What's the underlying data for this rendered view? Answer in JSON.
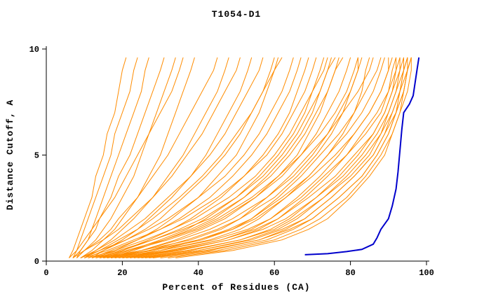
{
  "chart_data": {
    "type": "line",
    "title": "T1054-D1",
    "xlabel": "Percent of Residues (CA)",
    "ylabel": "Distance Cutoff, A",
    "xlim": [
      0,
      100
    ],
    "ylim": [
      0,
      10
    ],
    "x_ticks": [
      0,
      20,
      40,
      60,
      80,
      100
    ],
    "y_ticks": [
      0,
      5,
      10
    ],
    "grid": false,
    "legend": "none",
    "colors": {
      "model_curves": "#ff8c00",
      "best_curve": "#0000cc",
      "axis": "#000000",
      "text": "#000000",
      "background": "#ffffff"
    },
    "y_grid": [
      0.15,
      0.5,
      1,
      1.5,
      2,
      3,
      4,
      5,
      6,
      7,
      8,
      9,
      9.6
    ],
    "series": {
      "orange_model_curves": [
        [
          6,
          7,
          8,
          9,
          10,
          12,
          13,
          15,
          16,
          18,
          19,
          20,
          21
        ],
        [
          7,
          8,
          9,
          10,
          11,
          13,
          15,
          17,
          18,
          20,
          22,
          23,
          24
        ],
        [
          8,
          9,
          11,
          12,
          13,
          15,
          17,
          19,
          21,
          23,
          25,
          26,
          27
        ],
        [
          7,
          9,
          11,
          13,
          14,
          17,
          19,
          22,
          24,
          26,
          28,
          30,
          31
        ],
        [
          8,
          10,
          13,
          15,
          17,
          20,
          23,
          25,
          27,
          29,
          31,
          33,
          34
        ],
        [
          6,
          8,
          10,
          12,
          14,
          18,
          21,
          24,
          27,
          30,
          33,
          35,
          36
        ],
        [
          9,
          12,
          15,
          18,
          20,
          24,
          27,
          30,
          32,
          34,
          36,
          38,
          39
        ],
        [
          8,
          10,
          14,
          17,
          19,
          24,
          28,
          32,
          35,
          38,
          41,
          44,
          45
        ],
        [
          10,
          13,
          17,
          20,
          23,
          28,
          32,
          36,
          39,
          42,
          45,
          47,
          48
        ],
        [
          7,
          10,
          15,
          19,
          22,
          28,
          33,
          37,
          41,
          44,
          47,
          50,
          51
        ],
        [
          12,
          15,
          20,
          24,
          27,
          33,
          38,
          42,
          45,
          48,
          51,
          53,
          54
        ],
        [
          9,
          13,
          18,
          22,
          26,
          32,
          38,
          43,
          47,
          50,
          53,
          56,
          57
        ],
        [
          11,
          15,
          21,
          26,
          30,
          36,
          42,
          47,
          51,
          54,
          57,
          59,
          60
        ],
        [
          13,
          18,
          24,
          29,
          33,
          40,
          45,
          50,
          53,
          56,
          58,
          60,
          61
        ],
        [
          10,
          14,
          19,
          24,
          28,
          35,
          41,
          46,
          50,
          54,
          57,
          60,
          62
        ],
        [
          9,
          14,
          21,
          27,
          32,
          40,
          47,
          52,
          56,
          59,
          62,
          64,
          65
        ],
        [
          12,
          17,
          24,
          30,
          35,
          43,
          49,
          54,
          58,
          61,
          64,
          66,
          67
        ],
        [
          14,
          20,
          27,
          33,
          38,
          46,
          52,
          57,
          61,
          64,
          66,
          68,
          69
        ],
        [
          10,
          16,
          23,
          30,
          36,
          45,
          52,
          58,
          62,
          65,
          68,
          70,
          71
        ],
        [
          15,
          22,
          30,
          37,
          42,
          50,
          56,
          61,
          65,
          68,
          70,
          72,
          73
        ],
        [
          11,
          18,
          26,
          33,
          39,
          48,
          55,
          60,
          64,
          67,
          70,
          73,
          74
        ],
        [
          16,
          23,
          31,
          38,
          44,
          52,
          58,
          63,
          67,
          70,
          72,
          74,
          75
        ],
        [
          13,
          20,
          28,
          35,
          41,
          50,
          57,
          62,
          66,
          69,
          72,
          74,
          76
        ],
        [
          17,
          25,
          34,
          41,
          47,
          55,
          61,
          66,
          69,
          72,
          74,
          76,
          77
        ],
        [
          12,
          19,
          28,
          36,
          43,
          52,
          59,
          64,
          68,
          71,
          74,
          76,
          78
        ],
        [
          14,
          22,
          32,
          40,
          46,
          55,
          62,
          67,
          71,
          74,
          77,
          79,
          80
        ],
        [
          18,
          27,
          37,
          45,
          51,
          60,
          66,
          71,
          75,
          78,
          80,
          82,
          82
        ],
        [
          16,
          25,
          35,
          43,
          49,
          58,
          65,
          70,
          74,
          77,
          80,
          82,
          83
        ],
        [
          20,
          30,
          40,
          48,
          54,
          62,
          69,
          74,
          78,
          81,
          83,
          84,
          85
        ],
        [
          13,
          21,
          31,
          39,
          45,
          54,
          61,
          67,
          72,
          76,
          79,
          81,
          82
        ],
        [
          14,
          25,
          38,
          46,
          51,
          58,
          64,
          69,
          74,
          78,
          82,
          85,
          86
        ],
        [
          16,
          28,
          41,
          49,
          54,
          61,
          67,
          72,
          77,
          81,
          84,
          87,
          88
        ],
        [
          18,
          30,
          43,
          51,
          56,
          63,
          69,
          74,
          79,
          83,
          86,
          88,
          89
        ],
        [
          20,
          33,
          46,
          54,
          59,
          66,
          72,
          77,
          81,
          85,
          88,
          90,
          90
        ],
        [
          15,
          27,
          40,
          49,
          55,
          63,
          70,
          76,
          81,
          85,
          88,
          90,
          91
        ],
        [
          22,
          35,
          48,
          56,
          61,
          68,
          74,
          79,
          83,
          87,
          90,
          91,
          92
        ],
        [
          17,
          30,
          44,
          53,
          59,
          67,
          73,
          79,
          84,
          88,
          90,
          92,
          92
        ],
        [
          24,
          38,
          51,
          59,
          64,
          71,
          77,
          82,
          86,
          89,
          91,
          92,
          93
        ],
        [
          19,
          32,
          46,
          55,
          61,
          69,
          76,
          81,
          86,
          89,
          91,
          93,
          93
        ],
        [
          26,
          40,
          53,
          61,
          66,
          73,
          79,
          84,
          88,
          90,
          92,
          93,
          94
        ],
        [
          21,
          34,
          48,
          57,
          63,
          71,
          78,
          83,
          87,
          90,
          92,
          94,
          94
        ],
        [
          28,
          43,
          56,
          63,
          68,
          75,
          81,
          86,
          89,
          91,
          93,
          94,
          95
        ],
        [
          23,
          37,
          51,
          60,
          65,
          73,
          80,
          85,
          88,
          91,
          93,
          94,
          95
        ],
        [
          30,
          45,
          58,
          65,
          70,
          77,
          83,
          87,
          90,
          92,
          94,
          95,
          95
        ],
        [
          25,
          40,
          54,
          62,
          68,
          75,
          81,
          86,
          89,
          92,
          93,
          95,
          96
        ],
        [
          32,
          47,
          60,
          67,
          72,
          79,
          84,
          88,
          91,
          93,
          94,
          95,
          96
        ],
        [
          27,
          42,
          56,
          64,
          70,
          77,
          83,
          87,
          90,
          92,
          94,
          95,
          96
        ],
        [
          34,
          49,
          62,
          69,
          74,
          80,
          85,
          89,
          91,
          93,
          95,
          96,
          96
        ]
      ],
      "blue_best_curve": [
        [
          68,
          0.3
        ],
        [
          74,
          0.35
        ],
        [
          79,
          0.45
        ],
        [
          83,
          0.55
        ],
        [
          86,
          0.8
        ],
        [
          87,
          1.1
        ],
        [
          88,
          1.5
        ],
        [
          90,
          2.0
        ],
        [
          91,
          2.6
        ],
        [
          92,
          3.4
        ],
        [
          92.5,
          4.2
        ],
        [
          93,
          5.2
        ],
        [
          93.5,
          6.2
        ],
        [
          94,
          7.0
        ],
        [
          95.5,
          7.4
        ],
        [
          96.5,
          7.8
        ],
        [
          97,
          8.4
        ],
        [
          97.5,
          9.0
        ],
        [
          98,
          9.6
        ]
      ]
    }
  }
}
